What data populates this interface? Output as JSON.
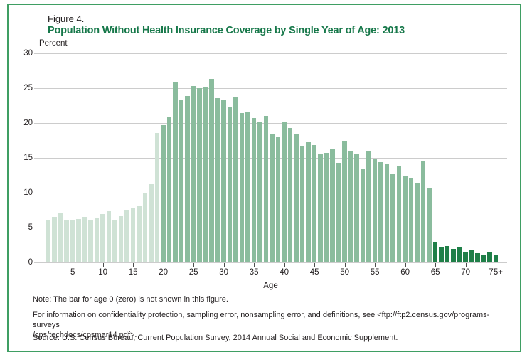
{
  "figure": {
    "label": "Figure 4.",
    "title": "Population Without Health Insurance Coverage by Single Year of Age: 2013"
  },
  "colors": {
    "frame_green": "#3f9e63",
    "title_green": "#17784a",
    "grid_gray": "#cccccc",
    "bar_light": "#cfe2d5",
    "bar_medium": "#8abc9d",
    "bar_dark": "#1f7f48"
  },
  "chart_data": {
    "type": "bar",
    "title": "Population Without Health Insurance Coverage by Single Year of Age: 2013",
    "ylabel": "Percent",
    "xlabel": "Age",
    "ylim": [
      0,
      30
    ],
    "grid": true,
    "yticks": [
      0,
      5,
      10,
      15,
      20,
      25,
      30
    ],
    "xticks": [
      5,
      10,
      15,
      20,
      25,
      30,
      35,
      40,
      45,
      50,
      55,
      60,
      65,
      70,
      75
    ],
    "xtick_labels": [
      "5",
      "10",
      "15",
      "20",
      "25",
      "30",
      "35",
      "40",
      "45",
      "50",
      "55",
      "60",
      "65",
      "70",
      "75+"
    ],
    "categories": [
      "1",
      "2",
      "3",
      "4",
      "5",
      "6",
      "7",
      "8",
      "9",
      "10",
      "11",
      "12",
      "13",
      "14",
      "15",
      "16",
      "17",
      "18",
      "19",
      "20",
      "21",
      "22",
      "23",
      "24",
      "25",
      "26",
      "27",
      "28",
      "29",
      "30",
      "31",
      "32",
      "33",
      "34",
      "35",
      "36",
      "37",
      "38",
      "39",
      "40",
      "41",
      "42",
      "43",
      "44",
      "45",
      "46",
      "47",
      "48",
      "49",
      "50",
      "51",
      "52",
      "53",
      "54",
      "55",
      "56",
      "57",
      "58",
      "59",
      "60",
      "61",
      "62",
      "63",
      "64",
      "65",
      "66",
      "67",
      "68",
      "69",
      "70",
      "71",
      "72",
      "73",
      "74",
      "75+"
    ],
    "values": [
      6.1,
      6.5,
      7.1,
      6.0,
      6.1,
      6.2,
      6.5,
      6.1,
      6.3,
      6.9,
      7.5,
      6.0,
      6.6,
      7.6,
      7.8,
      8.1,
      10.0,
      11.2,
      18.6,
      19.7,
      20.8,
      25.8,
      23.4,
      23.9,
      25.3,
      25.0,
      25.2,
      26.3,
      23.6,
      23.4,
      22.3,
      23.8,
      21.4,
      21.6,
      20.7,
      20.1,
      21.0,
      18.5,
      18.0,
      20.1,
      19.3,
      18.4,
      16.7,
      17.3,
      16.8,
      15.6,
      15.7,
      16.2,
      14.3,
      17.4,
      15.9,
      15.5,
      13.4,
      15.9,
      14.9,
      14.4,
      14.1,
      12.8,
      13.8,
      12.3,
      12.1,
      11.4,
      14.6,
      10.7,
      3.0,
      2.1,
      2.3,
      1.9,
      2.1,
      1.5,
      1.7,
      1.3,
      1.0,
      1.4,
      1.0
    ],
    "shades": [
      {
        "from_age": 1,
        "to_age": 19,
        "shade": "light"
      },
      {
        "from_age": 20,
        "to_age": 64,
        "shade": "medium"
      },
      {
        "from_age": 65,
        "to_age": 75,
        "shade": "dark"
      }
    ],
    "legend_position": "none"
  },
  "notes": {
    "note1": "Note: The bar for age 0 (zero) is not shown in this figure.",
    "note2_line1": "For information on confidentiality protection, sampling error, nonsampling error, and definitions, see <ftp://ftp2.census.gov/programs-surveys",
    "note2_line2": "/cps/techdocs/cpsmar14.pdf>.",
    "source": "Source: U.S. Census Bureau, Current Population Survey, 2014 Annual Social and Economic Supplement."
  }
}
